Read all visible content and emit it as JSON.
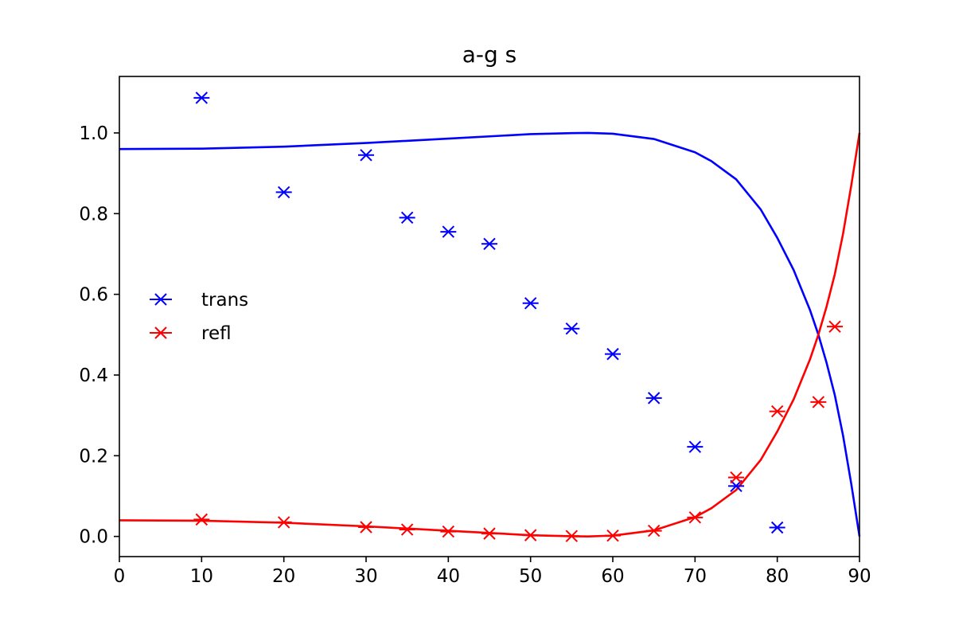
{
  "chart_data": {
    "type": "scatter",
    "title": "a-g s",
    "xlabel": "",
    "ylabel": "",
    "xlim": [
      0,
      90
    ],
    "ylim": [
      -0.05,
      1.14
    ],
    "xticks": [
      "0",
      "10",
      "20",
      "30",
      "40",
      "50",
      "60",
      "70",
      "80",
      "90"
    ],
    "yticks": [
      "0.0",
      "0.2",
      "0.4",
      "0.6",
      "0.8",
      "1.0"
    ],
    "grid": false,
    "legend_position": "center-left",
    "series": [
      {
        "name": "trans",
        "kind": "scatter",
        "marker": "x-with-errorbar",
        "color": "#0000ff",
        "points": [
          {
            "x": 10,
            "y": 1.087
          },
          {
            "x": 20,
            "y": 0.853
          },
          {
            "x": 30,
            "y": 0.945
          },
          {
            "x": 35,
            "y": 0.79
          },
          {
            "x": 40,
            "y": 0.755
          },
          {
            "x": 45,
            "y": 0.725
          },
          {
            "x": 50,
            "y": 0.578
          },
          {
            "x": 55,
            "y": 0.515
          },
          {
            "x": 60,
            "y": 0.452
          },
          {
            "x": 65,
            "y": 0.343
          },
          {
            "x": 70,
            "y": 0.222
          },
          {
            "x": 75,
            "y": 0.125
          },
          {
            "x": 80,
            "y": 0.022
          }
        ]
      },
      {
        "name": "refl",
        "kind": "scatter",
        "marker": "x-with-errorbar",
        "color": "#ff0000",
        "points": [
          {
            "x": 10,
            "y": 0.042
          },
          {
            "x": 20,
            "y": 0.035
          },
          {
            "x": 30,
            "y": 0.023
          },
          {
            "x": 35,
            "y": 0.017
          },
          {
            "x": 40,
            "y": 0.012
          },
          {
            "x": 45,
            "y": 0.007
          },
          {
            "x": 50,
            "y": 0.003
          },
          {
            "x": 55,
            "y": 0.001
          },
          {
            "x": 60,
            "y": 0.002
          },
          {
            "x": 65,
            "y": 0.014
          },
          {
            "x": 70,
            "y": 0.047
          },
          {
            "x": 75,
            "y": 0.146
          },
          {
            "x": 80,
            "y": 0.31
          },
          {
            "x": 85,
            "y": 0.333
          },
          {
            "x": 87,
            "y": 0.52
          }
        ]
      },
      {
        "kind": "line",
        "color": "#0000ff",
        "points": [
          {
            "x": 0,
            "y": 0.96
          },
          {
            "x": 10,
            "y": 0.961
          },
          {
            "x": 20,
            "y": 0.966
          },
          {
            "x": 30,
            "y": 0.975
          },
          {
            "x": 40,
            "y": 0.986
          },
          {
            "x": 50,
            "y": 0.997
          },
          {
            "x": 55,
            "y": 0.9995
          },
          {
            "x": 57,
            "y": 1.0
          },
          {
            "x": 60,
            "y": 0.998
          },
          {
            "x": 65,
            "y": 0.985
          },
          {
            "x": 70,
            "y": 0.952
          },
          {
            "x": 72,
            "y": 0.93
          },
          {
            "x": 75,
            "y": 0.885
          },
          {
            "x": 78,
            "y": 0.81
          },
          {
            "x": 80,
            "y": 0.74
          },
          {
            "x": 82,
            "y": 0.66
          },
          {
            "x": 84,
            "y": 0.56
          },
          {
            "x": 85,
            "y": 0.5
          },
          {
            "x": 86,
            "y": 0.43
          },
          {
            "x": 87,
            "y": 0.35
          },
          {
            "x": 88,
            "y": 0.25
          },
          {
            "x": 89,
            "y": 0.13
          },
          {
            "x": 90,
            "y": 0.0
          }
        ]
      },
      {
        "kind": "line",
        "color": "#ff0000",
        "points": [
          {
            "x": 0,
            "y": 0.04
          },
          {
            "x": 10,
            "y": 0.039
          },
          {
            "x": 20,
            "y": 0.034
          },
          {
            "x": 30,
            "y": 0.025
          },
          {
            "x": 40,
            "y": 0.014
          },
          {
            "x": 50,
            "y": 0.003
          },
          {
            "x": 55,
            "y": 0.0005
          },
          {
            "x": 57,
            "y": 0.0
          },
          {
            "x": 60,
            "y": 0.002
          },
          {
            "x": 65,
            "y": 0.015
          },
          {
            "x": 70,
            "y": 0.048
          },
          {
            "x": 72,
            "y": 0.07
          },
          {
            "x": 75,
            "y": 0.115
          },
          {
            "x": 78,
            "y": 0.19
          },
          {
            "x": 80,
            "y": 0.26
          },
          {
            "x": 82,
            "y": 0.34
          },
          {
            "x": 84,
            "y": 0.44
          },
          {
            "x": 85,
            "y": 0.5
          },
          {
            "x": 86,
            "y": 0.57
          },
          {
            "x": 87,
            "y": 0.65
          },
          {
            "x": 88,
            "y": 0.75
          },
          {
            "x": 89,
            "y": 0.87
          },
          {
            "x": 90,
            "y": 1.0
          }
        ]
      }
    ]
  }
}
